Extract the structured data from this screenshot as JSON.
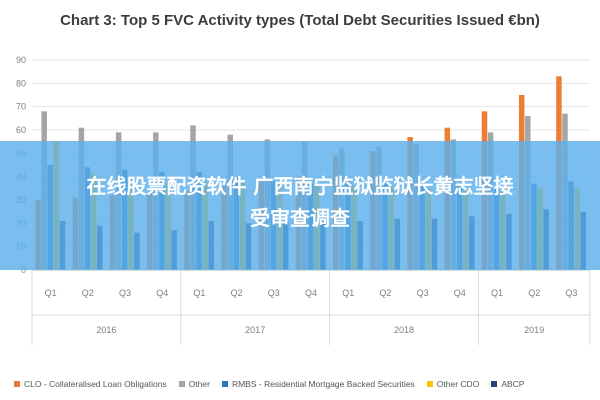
{
  "colors": {
    "background": "#ffffff",
    "grid": "#e6e6e6",
    "axis_text": "#7f7f7f",
    "banner": "#5bb0eb",
    "banner_text": "#ffffff"
  },
  "overlay": {
    "line1": "在线股票配资软件 广西南宁监狱监狱长黄志坚接",
    "line2": "受审查调查"
  },
  "chart_data": {
    "type": "bar",
    "title": "Chart 3: Top 5 FVC Activity types (Total Debt Securities Issued €bn)",
    "xlabel": "",
    "ylabel": "",
    "ylim": [
      0,
      90
    ],
    "yticks": [
      0,
      10,
      20,
      30,
      40,
      50,
      60,
      70,
      80,
      90
    ],
    "grid": true,
    "legend_position": "bottom",
    "groups": [
      {
        "label": "2016",
        "quarters": [
          "Q1",
          "Q2",
          "Q3",
          "Q4"
        ]
      },
      {
        "label": "2017",
        "quarters": [
          "Q1",
          "Q2",
          "Q3",
          "Q4"
        ]
      },
      {
        "label": "2018",
        "quarters": [
          "Q1",
          "Q2",
          "Q3",
          "Q4"
        ]
      },
      {
        "label": "2019",
        "quarters": [
          "Q1",
          "Q2",
          "Q3"
        ]
      }
    ],
    "categories": [
      "Q1",
      "Q2",
      "Q3",
      "Q4",
      "Q1",
      "Q2",
      "Q3",
      "Q4",
      "Q1",
      "Q2",
      "Q3",
      "Q4",
      "Q1",
      "Q2",
      "Q3"
    ],
    "series": [
      {
        "name": "CLO - Collateralised Loan Obligations",
        "color": "#ed7d31",
        "values": [
          30,
          31,
          32,
          33,
          34,
          36,
          38,
          40,
          49,
          51,
          57,
          61,
          68,
          75,
          83
        ]
      },
      {
        "name": "Other",
        "color": "#a5a5a5",
        "values": [
          68,
          61,
          59,
          59,
          62,
          58,
          56,
          55,
          52,
          53,
          54,
          56,
          59,
          66,
          67
        ]
      },
      {
        "name": "RMBS - Residential Mortgage Backed Securities",
        "color": "#2e75b6",
        "values": [
          45,
          44,
          43,
          42,
          42,
          40,
          38,
          37,
          38,
          38,
          37,
          36,
          36,
          37,
          38
        ]
      },
      {
        "name": "Other CDO",
        "color": "#ffc000",
        "values": [
          55,
          41,
          39,
          38,
          38,
          38,
          37,
          37,
          36,
          36,
          35,
          35,
          34,
          35,
          35
        ]
      },
      {
        "name": "ABCP",
        "color": "#264478",
        "values": [
          21,
          19,
          16,
          17,
          21,
          20,
          21,
          22,
          21,
          22,
          22,
          23,
          24,
          26,
          25
        ]
      }
    ]
  }
}
